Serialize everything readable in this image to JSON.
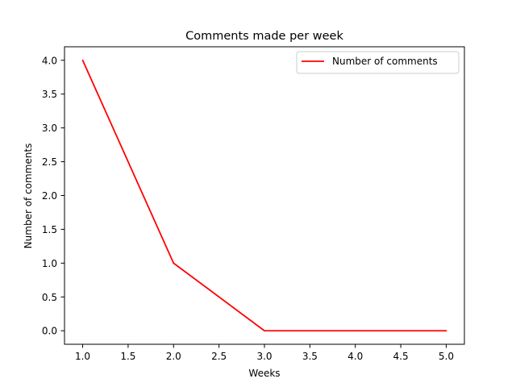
{
  "chart_data": {
    "type": "line",
    "title": "Comments made per week",
    "xlabel": "Weeks",
    "ylabel": "Number of comments",
    "x": [
      1,
      2,
      3,
      4,
      5
    ],
    "series": [
      {
        "name": "Number of comments",
        "values": [
          4,
          1,
          0,
          0,
          0
        ],
        "color": "#ff0000"
      }
    ],
    "xlim": [
      0.8,
      5.2
    ],
    "ylim": [
      -0.2,
      4.2
    ],
    "xticks": [
      1.0,
      1.5,
      2.0,
      2.5,
      3.0,
      3.5,
      4.0,
      4.5,
      5.0
    ],
    "yticks": [
      0.0,
      0.5,
      1.0,
      1.5,
      2.0,
      2.5,
      3.0,
      3.5,
      4.0
    ],
    "xtick_labels": [
      "1.0",
      "1.5",
      "2.0",
      "2.5",
      "3.0",
      "3.5",
      "4.0",
      "4.5",
      "5.0"
    ],
    "ytick_labels": [
      "0.0",
      "0.5",
      "1.0",
      "1.5",
      "2.0",
      "2.5",
      "3.0",
      "3.5",
      "4.0"
    ],
    "grid": false,
    "legend_position": "top-right"
  }
}
